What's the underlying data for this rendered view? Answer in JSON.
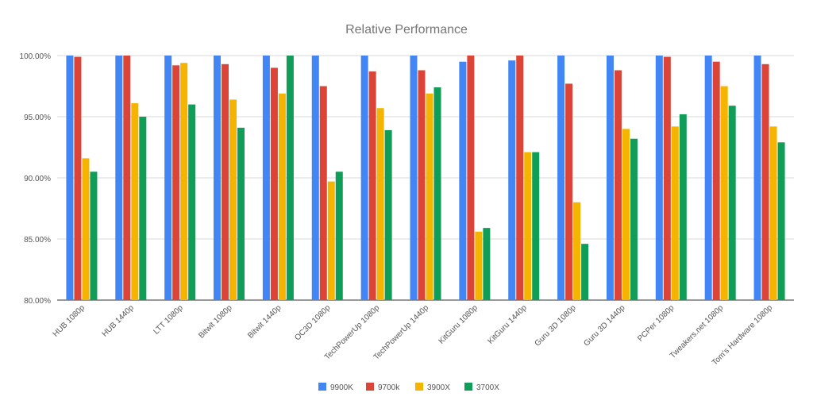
{
  "chart_data": {
    "type": "bar",
    "title": "Relative Performance",
    "xlabel": "",
    "ylabel": "",
    "ylim": [
      80,
      100
    ],
    "y_ticks": [
      "80.00%",
      "85.00%",
      "90.00%",
      "95.00%",
      "100.00%"
    ],
    "y_tick_values": [
      80,
      85,
      90,
      95,
      100
    ],
    "grid": true,
    "legend_position": "bottom",
    "categories": [
      "HUB 1080p",
      "HUB 1440p",
      "LTT 1080p",
      "Bitwit 1080p",
      "Bitwit 1440p",
      "OC3D 1080p",
      "TechPowerUp 1080p",
      "TechPowerUp 1440p",
      "KitGuru 1080p",
      "KitGuru 1440p",
      "Guru 3D 1080p",
      "Guru 3D 1440p",
      "PCPer 1080p",
      "Tweakers.net 1080p",
      "Tom's Hardware 1080p"
    ],
    "series": [
      {
        "name": "9900K",
        "color": "#4285f4",
        "values": [
          100,
          100,
          100,
          100,
          100,
          100,
          100,
          100,
          99.5,
          99.6,
          100,
          100,
          100,
          100,
          100
        ]
      },
      {
        "name": "9700k",
        "color": "#db4437",
        "values": [
          99.9,
          100,
          99.2,
          99.3,
          99.0,
          97.5,
          98.7,
          98.8,
          100,
          100,
          97.7,
          98.8,
          99.9,
          99.5,
          99.3
        ]
      },
      {
        "name": "3900X",
        "color": "#f4b400",
        "values": [
          91.6,
          96.1,
          99.4,
          96.4,
          96.9,
          89.7,
          95.7,
          96.9,
          85.6,
          92.1,
          88.0,
          94.0,
          94.2,
          97.5,
          94.2
        ]
      },
      {
        "name": "3700X",
        "color": "#0f9d58",
        "values": [
          90.5,
          95.0,
          96.0,
          94.1,
          100,
          90.5,
          93.9,
          97.4,
          85.9,
          92.1,
          84.6,
          93.2,
          95.2,
          95.9,
          92.9
        ]
      }
    ]
  }
}
